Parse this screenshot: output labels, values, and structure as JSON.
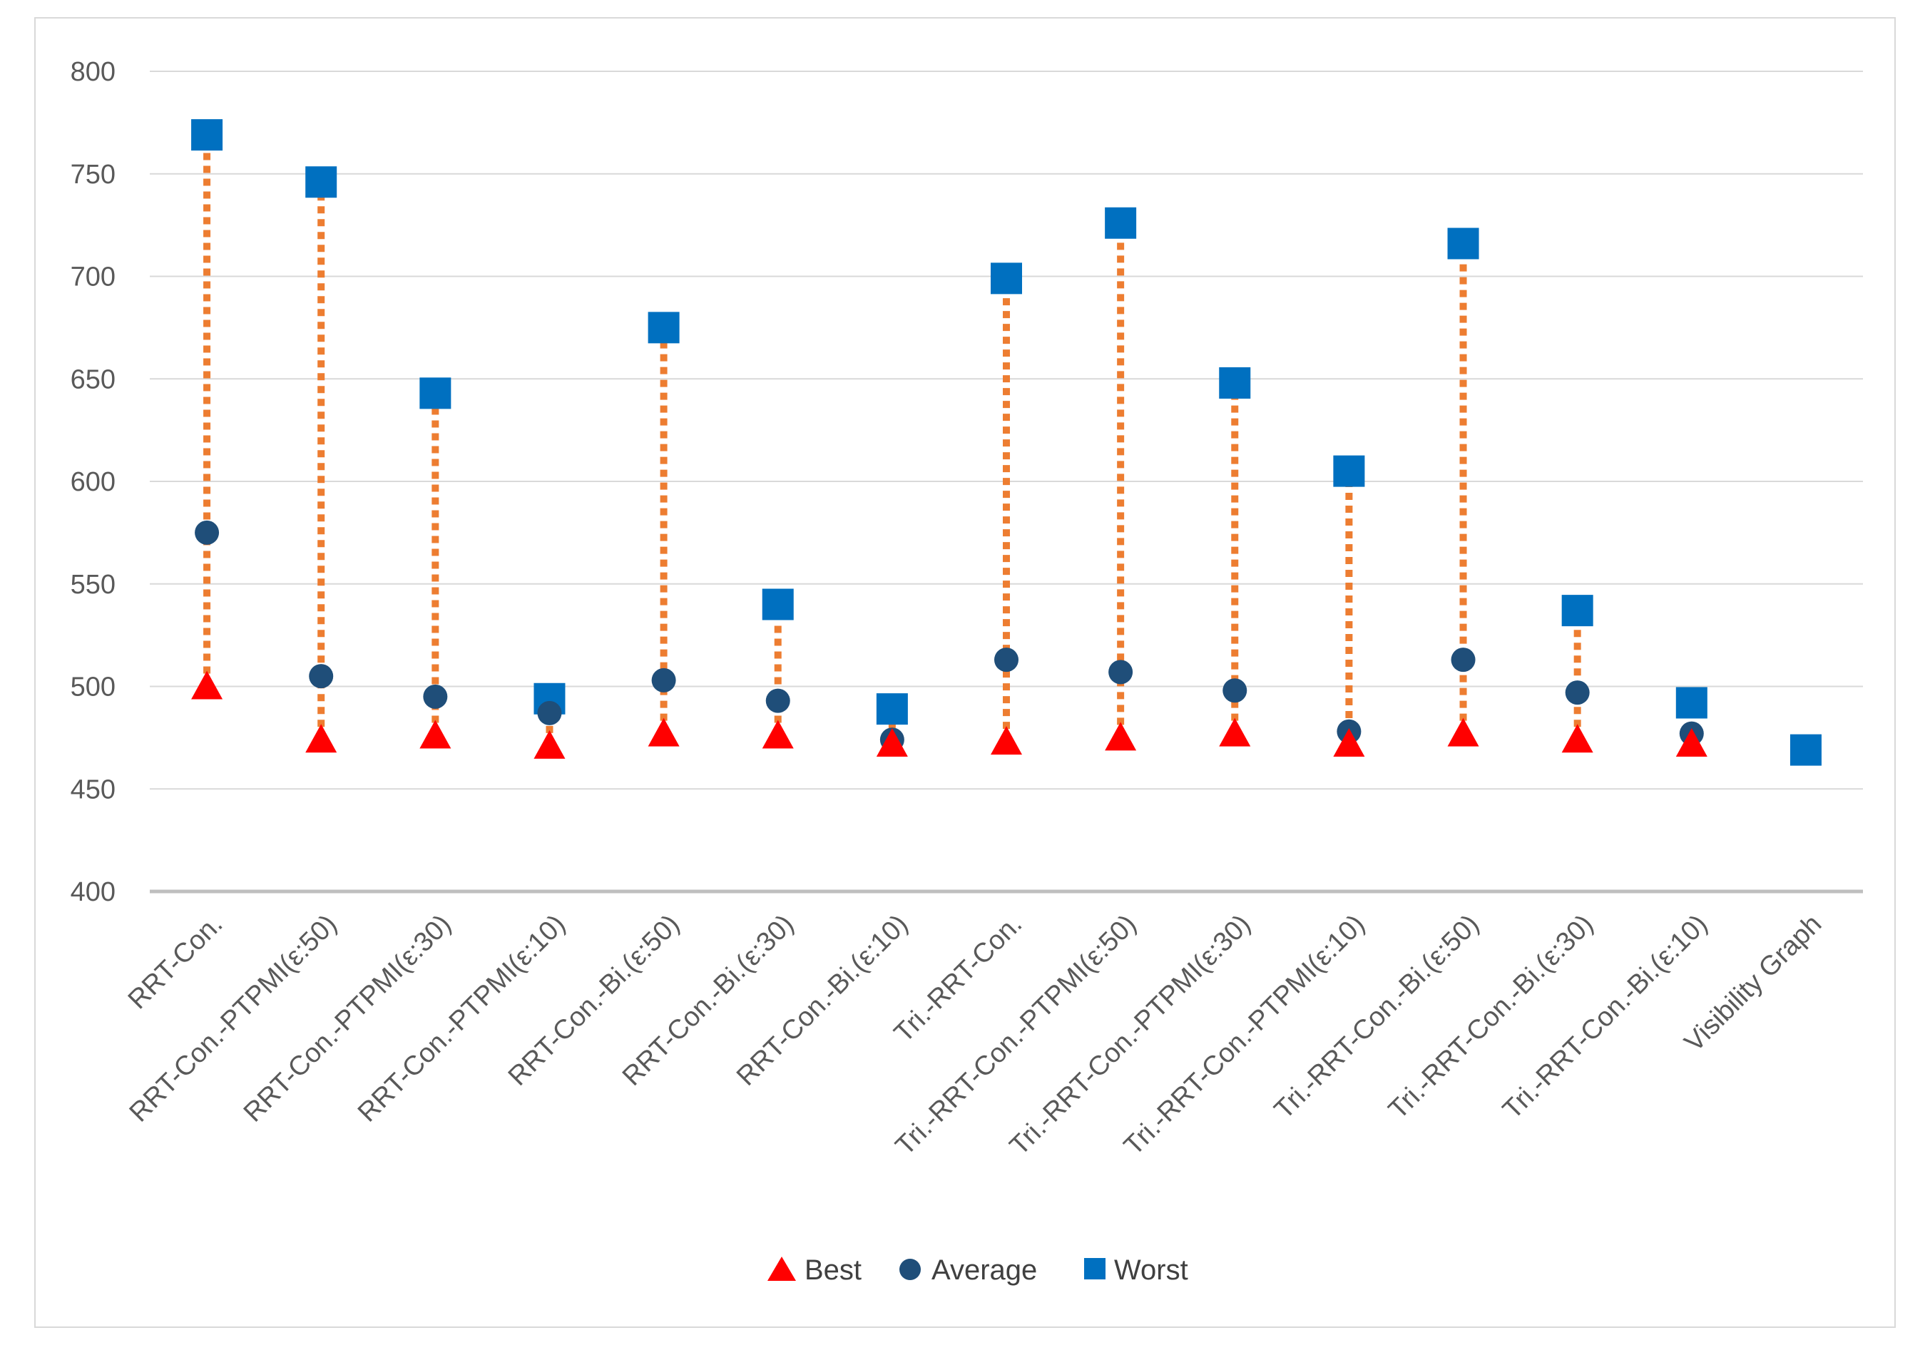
{
  "chart_data": {
    "type": "scatter",
    "title": "",
    "xlabel": "",
    "ylabel": "",
    "ylim": [
      400,
      800
    ],
    "yticks": [
      400,
      450,
      500,
      550,
      600,
      650,
      700,
      750,
      800
    ],
    "grid": true,
    "legend_position": "bottom",
    "categories": [
      "RRT-Con.",
      "RRT-Con.-PTPMI(ε:50)",
      "RRT-Con.-PTPMI(ε:30)",
      "RRT-Con.-PTPMI(ε:10)",
      "RRT-Con.-Bi.(ε:50)",
      "RRT-Con.-Bi.(ε:30)",
      "RRT-Con.-Bi.(ε:10)",
      "Tri.-RRT-Con.",
      "Tri.-RRT-Con.-PTPMI(ε:50)",
      "Tri.-RRT-Con.-PTPMI(ε:30)",
      "Tri.-RRT-Con.-PTPMI(ε:10)",
      "Tri.-RRT-Con.-Bi.(ε:50)",
      "Tri.-RRT-Con.-Bi.(ε:30)",
      "Tri.-RRT-Con.-Bi.(ε:10)",
      "Visibility Graph"
    ],
    "series": [
      {
        "name": "Best",
        "marker": "triangle",
        "color": "#ff0000",
        "values": [
          500,
          474,
          476,
          471,
          477,
          476,
          472,
          473,
          475,
          477,
          472,
          477,
          474,
          472,
          469
        ]
      },
      {
        "name": "Average",
        "marker": "circle",
        "color": "#1f4e79",
        "values": [
          575,
          505,
          495,
          487,
          503,
          493,
          474,
          513,
          507,
          498,
          478,
          513,
          497,
          477,
          469
        ]
      },
      {
        "name": "Worst",
        "marker": "square",
        "color": "#0070c0",
        "values": [
          769,
          746,
          643,
          494,
          675,
          540,
          489,
          699,
          726,
          648,
          605,
          716,
          537,
          492,
          469
        ]
      }
    ],
    "range_line_color": "#ed7d31"
  }
}
